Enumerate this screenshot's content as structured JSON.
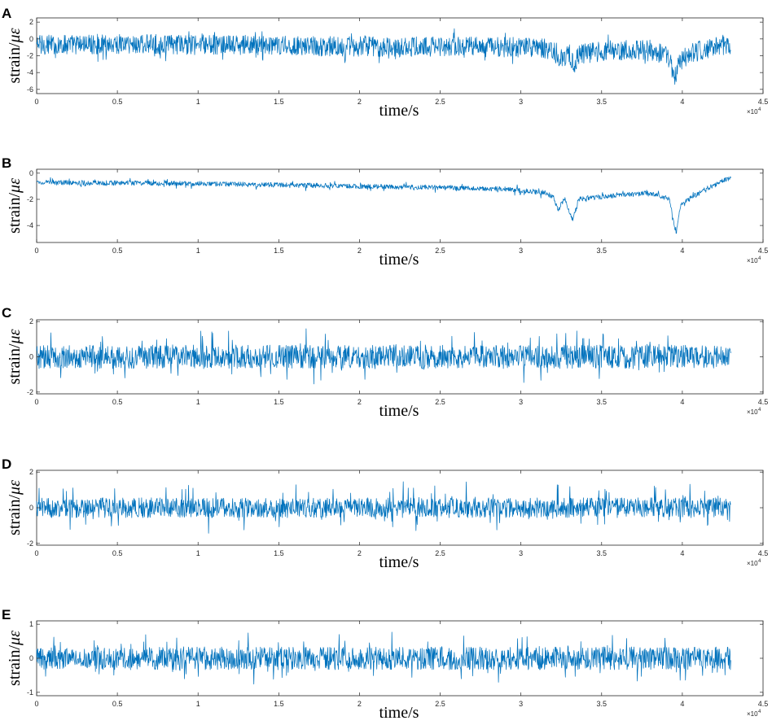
{
  "figure": {
    "x_multiplier_base": "×10",
    "x_multiplier_exp": "4",
    "ylabel_prefix": "strain/",
    "ylabel_unit": "με",
    "line_color": "#0072BD"
  },
  "chart_data": [
    {
      "panel": "A",
      "type": "line",
      "xlabel": "time/s",
      "ylabel": "strain/με",
      "xlim": [
        0,
        45000
      ],
      "ylim": [
        -6.5,
        2.5
      ],
      "x_ticks": [
        "0",
        "0.5",
        "1",
        "1.5",
        "2",
        "2.5",
        "3",
        "3.5",
        "4",
        "4.5"
      ],
      "y_ticks": [
        {
          "v": 2,
          "label": "2"
        },
        {
          "v": 0,
          "label": "0"
        },
        {
          "v": -2,
          "label": "-2"
        },
        {
          "v": -4,
          "label": "-4"
        },
        {
          "v": -6,
          "label": "-6"
        }
      ],
      "series": [
        {
          "x": [
            0,
            5000,
            10000,
            15000,
            20000,
            25000,
            30000,
            32000,
            32500,
            33000,
            33300,
            33600,
            35000,
            38000,
            39200,
            39500,
            39700,
            40500,
            42000,
            43000
          ],
          "y": [
            -0.7,
            -0.6,
            -0.7,
            -0.8,
            -0.9,
            -0.9,
            -1.0,
            -1.2,
            -2.4,
            -1.6,
            -3.2,
            -1.8,
            -1.5,
            -1.3,
            -2.2,
            -5.2,
            -3.0,
            -1.7,
            -0.9,
            -0.6
          ],
          "noise_amplitude": 1.6,
          "spike_amplitude": 0.9
        }
      ]
    },
    {
      "panel": "B",
      "type": "line",
      "xlabel": "time/s",
      "ylabel": "strain/με",
      "xlim": [
        0,
        45000
      ],
      "ylim": [
        -5.3,
        0.3
      ],
      "x_ticks": [
        "0",
        "0.5",
        "1",
        "1.5",
        "2",
        "2.5",
        "3",
        "3.5",
        "4",
        "4.5"
      ],
      "y_ticks": [
        {
          "v": 0,
          "label": "0"
        },
        {
          "v": -2,
          "label": "-2"
        },
        {
          "v": -4,
          "label": "-4"
        }
      ],
      "series": [
        {
          "x": [
            0,
            5000,
            10000,
            15000,
            20000,
            25000,
            29000,
            31500,
            32000,
            32300,
            32700,
            33200,
            33600,
            35000,
            38000,
            39200,
            39600,
            39900,
            41000,
            42500,
            43000
          ],
          "y": [
            -0.7,
            -0.75,
            -0.8,
            -0.9,
            -1.0,
            -1.1,
            -1.2,
            -1.5,
            -1.8,
            -2.8,
            -1.9,
            -3.6,
            -2.0,
            -1.8,
            -1.5,
            -2.0,
            -4.6,
            -2.4,
            -1.5,
            -0.6,
            -0.4
          ],
          "noise_amplitude": 0.25,
          "spike_amplitude": 0.25
        }
      ]
    },
    {
      "panel": "C",
      "type": "line",
      "xlabel": "time/s",
      "ylabel": "strain/με",
      "xlim": [
        0,
        45000
      ],
      "ylim": [
        -2.1,
        2.1
      ],
      "x_ticks": [
        "0",
        "0.5",
        "1",
        "1.5",
        "2",
        "2.5",
        "3",
        "3.5",
        "4",
        "4.5"
      ],
      "y_ticks": [
        {
          "v": 2,
          "label": "2"
        },
        {
          "v": 0,
          "label": "0"
        },
        {
          "v": -2,
          "label": "-2"
        }
      ],
      "series": [
        {
          "x": [
            0,
            43000
          ],
          "y": [
            0,
            0
          ],
          "noise_amplitude": 0.9,
          "spike_amplitude": 0.9
        }
      ]
    },
    {
      "panel": "D",
      "type": "line",
      "xlabel": "time/s",
      "ylabel": "strain/με",
      "xlim": [
        0,
        45000
      ],
      "ylim": [
        -2.1,
        2.1
      ],
      "x_ticks": [
        "0",
        "0.5",
        "1",
        "1.5",
        "2",
        "2.5",
        "3",
        "3.5",
        "4",
        "4.5"
      ],
      "y_ticks": [
        {
          "v": 2,
          "label": "2"
        },
        {
          "v": 0,
          "label": "0"
        },
        {
          "v": -2,
          "label": "-2"
        }
      ],
      "series": [
        {
          "x": [
            0,
            43000
          ],
          "y": [
            0,
            0
          ],
          "noise_amplitude": 0.75,
          "spike_amplitude": 0.9
        }
      ]
    },
    {
      "panel": "E",
      "type": "line",
      "xlabel": "time/s",
      "ylabel": "strain/με",
      "xlim": [
        0,
        45000
      ],
      "ylim": [
        -1.1,
        1.1
      ],
      "x_ticks": [
        "0",
        "0.5",
        "1",
        "1.5",
        "2",
        "2.5",
        "3",
        "3.5",
        "4",
        "4.5"
      ],
      "y_ticks": [
        {
          "v": 1,
          "label": "1"
        },
        {
          "v": 0,
          "label": "0"
        },
        {
          "v": -1,
          "label": "-1"
        }
      ],
      "series": [
        {
          "x": [
            0,
            43000
          ],
          "y": [
            0,
            0
          ],
          "noise_amplitude": 0.45,
          "spike_amplitude": 0.45
        }
      ]
    }
  ]
}
